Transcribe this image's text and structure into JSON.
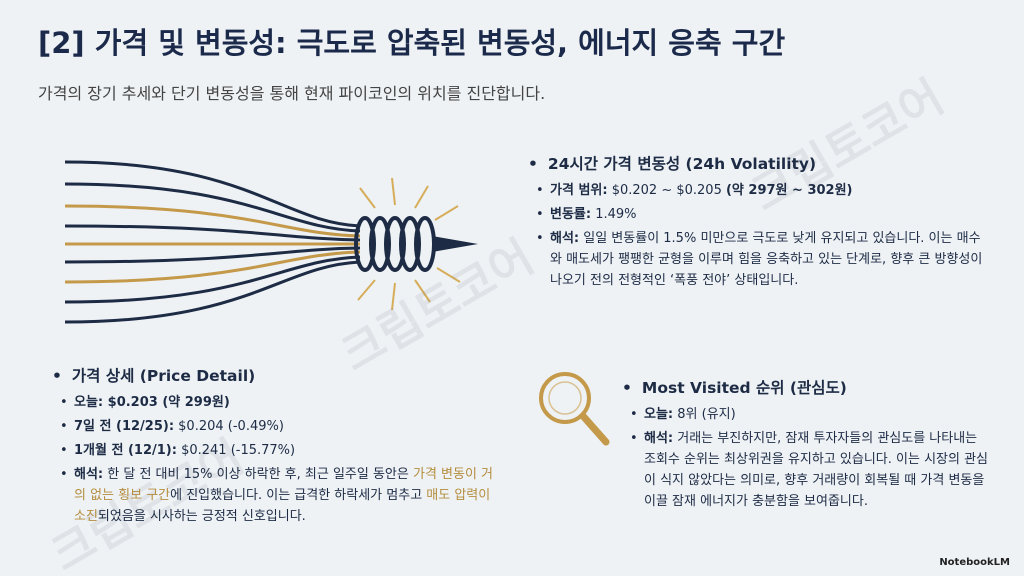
{
  "header": {
    "title": "[2] 가격 및 변동성: 극도로 압축된 변동성, 에너지 응축 구간",
    "subtitle": "가격의 장기 추세와 단기 변동성을 통해 현재 파이코인의 위치를 진단합니다."
  },
  "volatility": {
    "heading": "24시간 가격 변동성 (24h Volatility)",
    "items": [
      [
        {
          "text": "가격 범위:",
          "style": "bold"
        },
        {
          "text": " $0.202 ~ $0.205 ",
          "style": "plain"
        },
        {
          "text": "(약 297원 ~ 302원)",
          "style": "bold"
        }
      ],
      [
        {
          "text": "변동률:",
          "style": "bold"
        },
        {
          "text": " 1.49%",
          "style": "plain"
        }
      ],
      [
        {
          "text": "해석:",
          "style": "bold"
        },
        {
          "text": " 일일 변동률이 1.5% 미만으로 극도로 낮게 유지되고 있습니다. 이는 매수와 매도세가 팽팽한 균형을 이루며 힘을 응축하고 있는 단계로, 향후 큰 방향성이 나오기 전의 전형적인 ‘폭풍 전야’ 상태입니다.",
          "style": "plain"
        }
      ]
    ]
  },
  "price_detail": {
    "heading": "가격 상세 (Price Detail)",
    "items": [
      [
        {
          "text": "오늘: $0.203 (약 299원)",
          "style": "bold"
        }
      ],
      [
        {
          "text": "7일 전 (12/25):",
          "style": "bold"
        },
        {
          "text": " $0.204 (-0.49%)",
          "style": "plain"
        }
      ],
      [
        {
          "text": "1개월 전 (12/1):",
          "style": "bold"
        },
        {
          "text": " $0.241 (-15.77%)",
          "style": "plain"
        }
      ],
      [
        {
          "text": "해석:",
          "style": "bold"
        },
        {
          "text": " 한 달 전 대비 15% 이상 하락한 후, 최근 일주일 동안은 ",
          "style": "plain"
        },
        {
          "text": "가격 변동이 거의 없는 횡보 구간",
          "style": "gold"
        },
        {
          "text": "에 진입했습니다. 이는 급격한 하락세가 멈추고 ",
          "style": "plain"
        },
        {
          "text": "매도 압력이 소진",
          "style": "gold"
        },
        {
          "text": "되었음을 시사하는 긍정적 신호입니다.",
          "style": "plain"
        }
      ]
    ]
  },
  "most_visited": {
    "heading": "Most Visited 순위 (관심도)",
    "items": [
      [
        {
          "text": "오늘:",
          "style": "bold"
        },
        {
          "text": " 8위 (유지)",
          "style": "plain"
        }
      ],
      [
        {
          "text": "해석:",
          "style": "bold"
        },
        {
          "text": " 거래는 부진하지만, 잠재 투자자들의 관심도를 나타내는 조회수 순위는 최상위권을 유지하고 있습니다. 이는 시장의 관심이 식지 않았다는 의미로, 향후 거래량이 회복될 때 가격 변동을 이끌 잠재 에너지가 충분함을 보여줍니다.",
          "style": "plain"
        }
      ]
    ]
  },
  "watermark": "크립토코어",
  "logo": "NotebookLM"
}
